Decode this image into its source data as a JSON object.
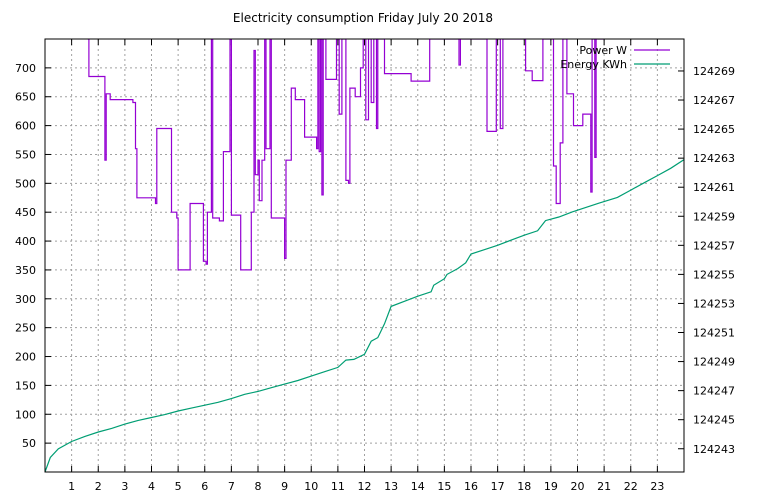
{
  "chart_data": {
    "type": "line",
    "title": "Electricity consumption Friday July 20 2018",
    "x_ticks": [
      "1",
      "2",
      "3",
      "4",
      "5",
      "6",
      "7",
      "8",
      "9",
      "10",
      "11",
      "12",
      "13",
      "14",
      "15",
      "16",
      "17",
      "18",
      "19",
      "20",
      "21",
      "22",
      "23"
    ],
    "xlim": [
      0,
      24
    ],
    "y_left_ticks": [
      "50",
      "100",
      "150",
      "200",
      "250",
      "300",
      "350",
      "400",
      "450",
      "500",
      "550",
      "600",
      "650",
      "700"
    ],
    "ylim_left": [
      0,
      750
    ],
    "y_right_ticks": [
      "124243",
      "124245",
      "124247",
      "124249",
      "124251",
      "124253",
      "124255",
      "124257",
      "124259",
      "124261",
      "124263",
      "124265",
      "124267",
      "124269"
    ],
    "ylim_right": [
      124241.4,
      124271.2
    ],
    "grid": true,
    "legend_position": "top-right",
    "series": [
      {
        "name": "Power W",
        "axis": "left",
        "color": "#9400d3",
        "step": true,
        "points": [
          [
            1.6,
            750
          ],
          [
            1.65,
            685
          ],
          [
            2.2,
            685
          ],
          [
            2.25,
            540
          ],
          [
            2.3,
            655
          ],
          [
            2.45,
            645
          ],
          [
            3.3,
            640
          ],
          [
            3.4,
            560
          ],
          [
            3.45,
            475
          ],
          [
            4.1,
            475
          ],
          [
            4.15,
            465
          ],
          [
            4.2,
            595
          ],
          [
            4.7,
            595
          ],
          [
            4.75,
            450
          ],
          [
            4.95,
            440
          ],
          [
            5.0,
            350
          ],
          [
            5.35,
            350
          ],
          [
            5.45,
            465
          ],
          [
            5.9,
            465
          ],
          [
            5.95,
            365
          ],
          [
            6.05,
            360
          ],
          [
            6.1,
            450
          ],
          [
            6.2,
            450
          ],
          [
            6.25,
            750
          ],
          [
            6.3,
            440
          ],
          [
            6.55,
            435
          ],
          [
            6.7,
            555
          ],
          [
            6.95,
            750
          ],
          [
            7.0,
            445
          ],
          [
            7.3,
            445
          ],
          [
            7.35,
            350
          ],
          [
            7.7,
            350
          ],
          [
            7.75,
            450
          ],
          [
            7.85,
            730
          ],
          [
            7.9,
            515
          ],
          [
            8.0,
            540
          ],
          [
            8.05,
            470
          ],
          [
            8.15,
            540
          ],
          [
            8.25,
            750
          ],
          [
            8.3,
            560
          ],
          [
            8.45,
            750
          ],
          [
            8.5,
            440
          ],
          [
            8.95,
            440
          ],
          [
            9.0,
            370
          ],
          [
            9.05,
            540
          ],
          [
            9.2,
            540
          ],
          [
            9.25,
            665
          ],
          [
            9.4,
            645
          ],
          [
            9.7,
            645
          ],
          [
            9.75,
            580
          ],
          [
            10.15,
            580
          ],
          [
            10.2,
            560
          ],
          [
            10.25,
            750
          ],
          [
            10.3,
            555
          ],
          [
            10.35,
            750
          ],
          [
            10.4,
            480
          ],
          [
            10.45,
            750
          ],
          [
            10.55,
            680
          ],
          [
            10.9,
            680
          ],
          [
            10.95,
            750
          ],
          [
            11.05,
            620
          ],
          [
            11.15,
            750
          ],
          [
            11.3,
            505
          ],
          [
            11.4,
            500
          ],
          [
            11.45,
            665
          ],
          [
            11.65,
            650
          ],
          [
            11.75,
            650
          ],
          [
            11.85,
            700
          ],
          [
            11.95,
            750
          ],
          [
            12.05,
            610
          ],
          [
            12.15,
            750
          ],
          [
            12.25,
            640
          ],
          [
            12.35,
            750
          ],
          [
            12.45,
            595
          ],
          [
            12.5,
            750
          ],
          [
            12.7,
            750
          ],
          [
            12.75,
            690
          ],
          [
            13.6,
            690
          ],
          [
            13.75,
            677
          ],
          [
            14.4,
            677
          ],
          [
            14.45,
            750
          ],
          [
            15.55,
            705
          ],
          [
            15.6,
            750
          ],
          [
            16.6,
            590
          ],
          [
            16.9,
            590
          ],
          [
            16.95,
            750
          ],
          [
            17.1,
            595
          ],
          [
            17.2,
            750
          ],
          [
            18.0,
            750
          ],
          [
            18.05,
            695
          ],
          [
            18.3,
            678
          ],
          [
            18.65,
            678
          ],
          [
            18.7,
            750
          ],
          [
            19.1,
            530
          ],
          [
            19.2,
            465
          ],
          [
            19.35,
            570
          ],
          [
            19.45,
            750
          ],
          [
            19.6,
            655
          ],
          [
            19.85,
            600
          ],
          [
            20.2,
            620
          ],
          [
            20.4,
            620
          ],
          [
            20.5,
            485
          ],
          [
            20.55,
            750
          ],
          [
            20.65,
            545
          ],
          [
            20.7,
            750
          ],
          [
            20.9,
            750
          ],
          [
            21.0,
            750
          ]
        ]
      },
      {
        "name": "Energy KWh",
        "axis": "right",
        "color": "#009e73",
        "step": false,
        "points": [
          [
            0.0,
            124241.4
          ],
          [
            0.2,
            124242.4
          ],
          [
            0.5,
            124243.0
          ],
          [
            1.0,
            124243.5
          ],
          [
            1.5,
            124243.85
          ],
          [
            2.0,
            124244.15
          ],
          [
            2.5,
            124244.4
          ],
          [
            3.0,
            124244.7
          ],
          [
            3.5,
            124244.95
          ],
          [
            4.0,
            124245.15
          ],
          [
            4.5,
            124245.35
          ],
          [
            5.0,
            124245.6
          ],
          [
            5.5,
            124245.8
          ],
          [
            6.0,
            124246.0
          ],
          [
            6.5,
            124246.2
          ],
          [
            7.0,
            124246.45
          ],
          [
            7.5,
            124246.75
          ],
          [
            8.0,
            124246.95
          ],
          [
            8.5,
            124247.2
          ],
          [
            9.0,
            124247.45
          ],
          [
            9.5,
            124247.7
          ],
          [
            10.0,
            124248.0
          ],
          [
            10.5,
            124248.3
          ],
          [
            11.0,
            124248.6
          ],
          [
            11.3,
            124249.1
          ],
          [
            11.6,
            124249.15
          ],
          [
            12.0,
            124249.5
          ],
          [
            12.25,
            124250.4
          ],
          [
            12.5,
            124250.65
          ],
          [
            12.75,
            124251.6
          ],
          [
            13.0,
            124252.8
          ],
          [
            13.5,
            124253.15
          ],
          [
            14.0,
            124253.5
          ],
          [
            14.5,
            124253.8
          ],
          [
            14.6,
            124254.25
          ],
          [
            15.0,
            124254.7
          ],
          [
            15.1,
            124255.0
          ],
          [
            15.5,
            124255.4
          ],
          [
            15.8,
            124255.8
          ],
          [
            16.0,
            124256.4
          ],
          [
            16.5,
            124256.7
          ],
          [
            17.0,
            124257.0
          ],
          [
            17.5,
            124257.35
          ],
          [
            18.0,
            124257.7
          ],
          [
            18.5,
            124258.0
          ],
          [
            18.8,
            124258.7
          ],
          [
            19.3,
            124258.95
          ],
          [
            19.8,
            124259.3
          ],
          [
            20.3,
            124259.6
          ],
          [
            20.8,
            124259.9
          ],
          [
            21.5,
            124260.3
          ],
          [
            22.0,
            124260.8
          ],
          [
            22.5,
            124261.3
          ],
          [
            23.0,
            124261.8
          ],
          [
            23.5,
            124262.3
          ],
          [
            24.0,
            124262.9
          ]
        ]
      }
    ]
  }
}
